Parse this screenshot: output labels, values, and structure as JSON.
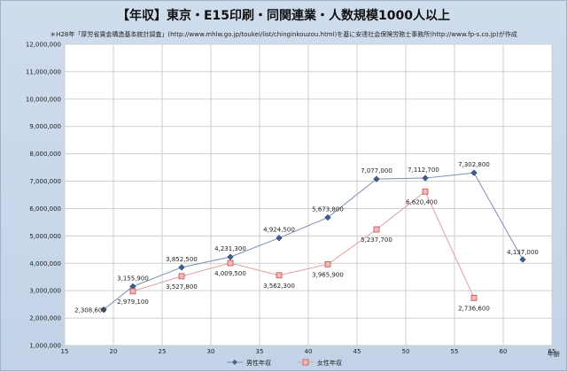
{
  "chart_data": {
    "type": "line",
    "title": "【年収】東京・E15印刷・同関連業・人数規模1000人以上",
    "subtitle": "＊H28年「厚労省賃金構造基本統計調査」(http://www.mhlw.go.jp/toukei/list/chinginkouzou.html)を基に安達社会保険労務士事務所(http://www.fp-s.co.jp)が作成",
    "xlabel": "年齢",
    "ylabel": "",
    "xlim": [
      15,
      65
    ],
    "ylim": [
      1000000,
      12000000
    ],
    "xticks": [
      15,
      20,
      25,
      30,
      35,
      40,
      45,
      50,
      55,
      60,
      65
    ],
    "yticks": [
      1000000,
      2000000,
      3000000,
      4000000,
      5000000,
      6000000,
      7000000,
      8000000,
      9000000,
      10000000,
      11000000,
      12000000
    ],
    "grid": true,
    "legend_position": "bottom",
    "series": [
      {
        "name": "男性年収",
        "color": "#3f5f8f",
        "marker": "diamond",
        "x": [
          19,
          22,
          27,
          32,
          37,
          42,
          47,
          52,
          57,
          62
        ],
        "values": [
          2308600,
          3155900,
          3852500,
          4231300,
          4924500,
          5673800,
          7077000,
          7112700,
          7302800,
          4137000
        ],
        "labels": [
          "2,308,600",
          "3,155,900",
          "3,852,500",
          "4,231,300",
          "4,924,500",
          "5,673,800",
          "7,077,000",
          "7,112,700",
          "7,302,800",
          "4,137,000"
        ]
      },
      {
        "name": "女性年収",
        "color": "#d97b7b",
        "marker": "square",
        "x": [
          22,
          27,
          32,
          37,
          42,
          47,
          52,
          57
        ],
        "values": [
          2979100,
          3527800,
          4009500,
          3562300,
          3965900,
          5237700,
          6620400,
          2736600
        ],
        "labels": [
          "2,979,100",
          "3,527,800",
          "4,009,500",
          "3,562,300",
          "3,965,900",
          "5,237,700",
          "6,620,400",
          "2,736,600"
        ]
      }
    ]
  }
}
